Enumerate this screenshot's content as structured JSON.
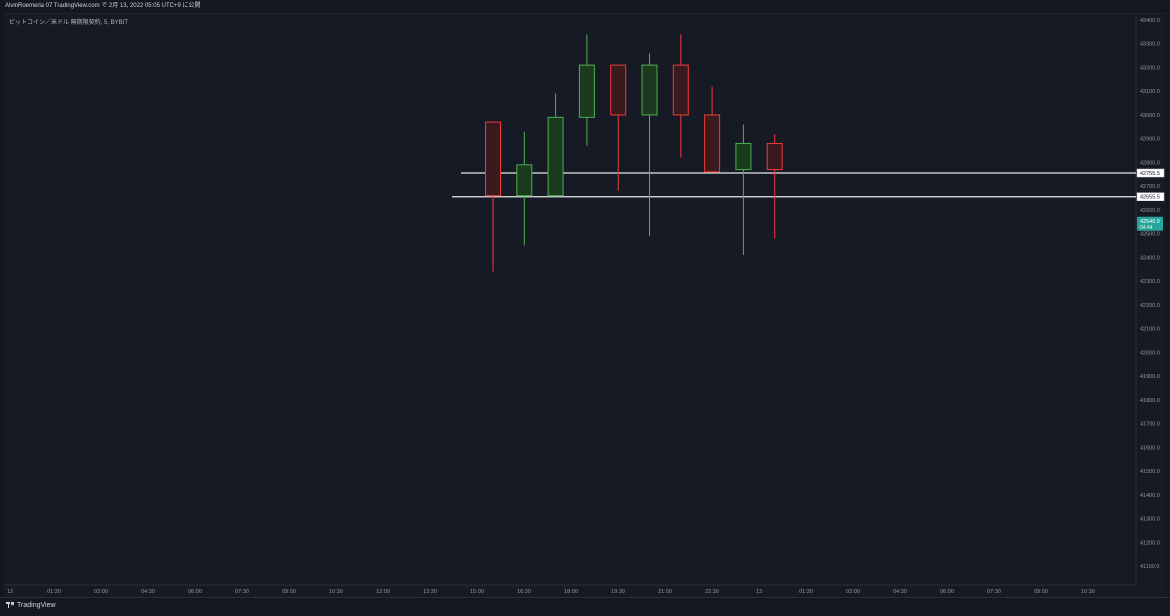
{
  "header": {
    "title": "AlvinRoemeria 07 TradingView.com で 2月 13, 2022 05:05 UTC+9 に公開"
  },
  "chart": {
    "symbol": "ビットコイン／米ドル 無期限契約, 5, BYBIT"
  },
  "footer": {
    "brand": "TradingView"
  },
  "colors": {
    "background": "#131722",
    "up": "#4caf50",
    "down": "#ef3a3a",
    "up_body": "#1b3a1e",
    "down_body": "#3a1a1c",
    "grid_text": "#9598a1",
    "level_line": "#e8e8e8",
    "price_badge": "#26a69a"
  },
  "chart_data": {
    "type": "candlestick",
    "y_axis_labels": [
      "43400.0",
      "43300.0",
      "43200.0",
      "43100.0",
      "43000.0",
      "42900.0",
      "42800.0",
      "42700.0",
      "42600.0",
      "42500.0",
      "42400.0",
      "42300.0",
      "42200.0",
      "42100.0",
      "42000.0",
      "41900.0",
      "41800.0",
      "41700.0",
      "41600.0",
      "41500.0",
      "41400.0",
      "41300.0",
      "41200.0",
      "41100.0"
    ],
    "x_axis_labels": [
      "12",
      "01:30",
      "03:00",
      "04:30",
      "06:00",
      "07:30",
      "09:00",
      "10:30",
      "12:00",
      "13:30",
      "15:00",
      "16:30",
      "18:00",
      "19:30",
      "21:00",
      "22:30",
      "13",
      "01:30",
      "03:00",
      "04:30",
      "06:00",
      "07:30",
      "09:00",
      "10:30"
    ],
    "ylim": [
      41040,
      43470
    ],
    "grid": false,
    "candles": [
      {
        "time": "15:30",
        "open": 42970,
        "high": 42970,
        "low": 42340,
        "close": 42660
      },
      {
        "time": "16:30",
        "open": 42660,
        "high": 42930,
        "low": 42450,
        "close": 42790
      },
      {
        "time": "17:30",
        "open": 42660,
        "high": 43090,
        "low": 42660,
        "close": 42990
      },
      {
        "time": "18:30",
        "open": 42990,
        "high": 43340,
        "low": 42870,
        "close": 43210
      },
      {
        "time": "19:30",
        "open": 43210,
        "high": 43210,
        "low": 42680,
        "close": 43000
      },
      {
        "time": "20:30",
        "open": 43000,
        "high": 43260,
        "low": 42490,
        "close": 43210
      },
      {
        "time": "21:30",
        "open": 43210,
        "high": 43340,
        "low": 42820,
        "close": 43000
      },
      {
        "time": "22:30",
        "open": 43000,
        "high": 43120,
        "low": 42770,
        "close": 42760
      },
      {
        "time": "23:30",
        "open": 42770,
        "high": 42960,
        "low": 42410,
        "close": 42880
      },
      {
        "time": "00:30",
        "open": 42880,
        "high": 42920,
        "low": 42480,
        "close": 42770
      }
    ],
    "horizontal_levels": [
      {
        "value": "42755.5",
        "price": 42755.5
      },
      {
        "value": "42655.5",
        "price": 42655.5
      }
    ],
    "last_price": {
      "value": "42546.0",
      "countdown": "04:44",
      "price": 42546
    }
  }
}
